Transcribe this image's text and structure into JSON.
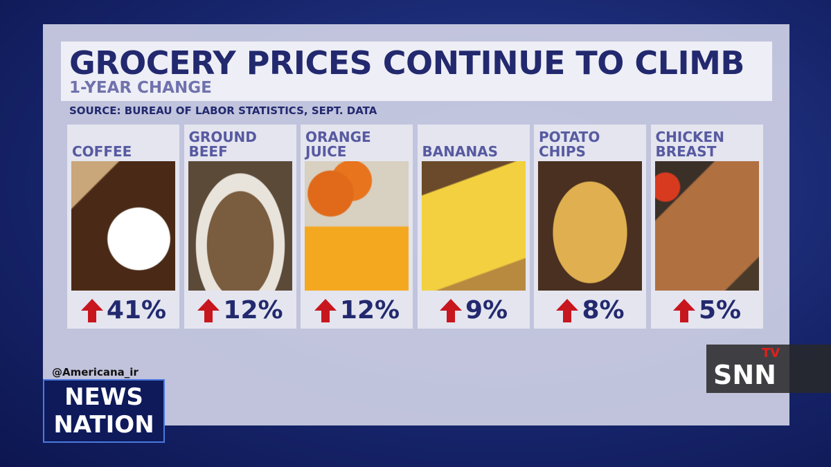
{
  "header": {
    "title": "GROCERY PRICES CONTINUE TO CLIMB",
    "subtitle": "1-YEAR CHANGE",
    "source": "SOURCE: BUREAU OF LABOR STATISTICS, SEPT. DATA"
  },
  "items": [
    {
      "name_lines": [
        "COFFEE"
      ],
      "change": "41%"
    },
    {
      "name_lines": [
        "GROUND",
        "BEEF"
      ],
      "change": "12%"
    },
    {
      "name_lines": [
        "ORANGE",
        "JUICE"
      ],
      "change": "12%"
    },
    {
      "name_lines": [
        "BANANAS"
      ],
      "change": "9%"
    },
    {
      "name_lines": [
        "POTATO",
        "CHIPS"
      ],
      "change": "8%"
    },
    {
      "name_lines": [
        "CHICKEN",
        "BREAST"
      ],
      "change": "5%"
    }
  ],
  "overlays": {
    "handle": "@Americana_ir",
    "network_lines": [
      "NEWS",
      "NATION"
    ],
    "tv_logo": "SNN",
    "tv_badge": "TV"
  }
}
